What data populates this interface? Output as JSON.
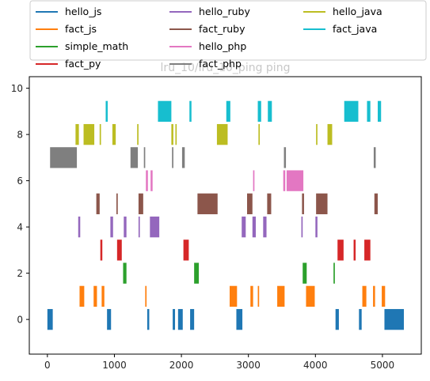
{
  "chart_data": {
    "type": "bar",
    "orientation": "horizontal-broken-bar",
    "title": "lru_10/lru_10_ping ping",
    "xlabel": "",
    "ylabel": "",
    "xlim": [
      -270,
      5580
    ],
    "ylim": [
      -1.5,
      10.5
    ],
    "xticks": [
      0,
      1000,
      2000,
      3000,
      4000,
      5000
    ],
    "yticks": [
      0,
      2,
      4,
      6,
      8,
      10
    ],
    "grid": false,
    "legend": {
      "placement": "upper-center-outside",
      "columns": 3
    },
    "bar_height": 0.9,
    "series": [
      {
        "name": "hello_js",
        "color": "#1f77b4",
        "y": 0,
        "segments": [
          [
            0,
            80
          ],
          [
            890,
            60
          ],
          [
            1490,
            30
          ],
          [
            1870,
            35
          ],
          [
            1950,
            70
          ],
          [
            2130,
            60
          ],
          [
            2820,
            90
          ],
          [
            4300,
            50
          ],
          [
            4650,
            40
          ],
          [
            5030,
            290
          ]
        ]
      },
      {
        "name": "fact_js",
        "color": "#ff7f0e",
        "y": 1,
        "segments": [
          [
            480,
            70
          ],
          [
            690,
            50
          ],
          [
            810,
            40
          ],
          [
            1460,
            20
          ],
          [
            2720,
            110
          ],
          [
            3030,
            40
          ],
          [
            3140,
            20
          ],
          [
            3430,
            110
          ],
          [
            3860,
            130
          ],
          [
            4700,
            60
          ],
          [
            4860,
            30
          ],
          [
            4990,
            50
          ]
        ]
      },
      {
        "name": "simple_math",
        "color": "#2ca02c",
        "y": 2,
        "segments": [
          [
            1130,
            50
          ],
          [
            2190,
            70
          ],
          [
            3810,
            60
          ],
          [
            4270,
            20
          ]
        ]
      },
      {
        "name": "fact_py",
        "color": "#d62728",
        "y": 3,
        "segments": [
          [
            790,
            30
          ],
          [
            1040,
            70
          ],
          [
            2030,
            80
          ],
          [
            4330,
            90
          ],
          [
            4570,
            30
          ],
          [
            4730,
            90
          ]
        ]
      },
      {
        "name": "hello_ruby",
        "color": "#9467bd",
        "y": 4,
        "segments": [
          [
            460,
            30
          ],
          [
            940,
            40
          ],
          [
            1140,
            40
          ],
          [
            1360,
            20
          ],
          [
            1530,
            140
          ],
          [
            2900,
            60
          ],
          [
            3060,
            50
          ],
          [
            3220,
            50
          ],
          [
            3790,
            20
          ],
          [
            4000,
            30
          ]
        ]
      },
      {
        "name": "fact_ruby",
        "color": "#8c564b",
        "y": 5,
        "segments": [
          [
            730,
            50
          ],
          [
            1030,
            20
          ],
          [
            1360,
            70
          ],
          [
            2240,
            300
          ],
          [
            2980,
            80
          ],
          [
            3280,
            60
          ],
          [
            3800,
            30
          ],
          [
            4010,
            170
          ],
          [
            4880,
            50
          ]
        ]
      },
      {
        "name": "hello_php",
        "color": "#e377c2",
        "y": 6,
        "segments": [
          [
            1470,
            30
          ],
          [
            1540,
            30
          ],
          [
            3070,
            20
          ],
          [
            3520,
            30
          ],
          [
            3570,
            250
          ]
        ]
      },
      {
        "name": "fact_php",
        "color": "#7f7f7f",
        "y": 7,
        "segments": [
          [
            40,
            400
          ],
          [
            1240,
            110
          ],
          [
            1440,
            20
          ],
          [
            1860,
            20
          ],
          [
            2010,
            40
          ],
          [
            3530,
            30
          ],
          [
            4870,
            30
          ]
        ]
      },
      {
        "name": "hello_java",
        "color": "#bcbd22",
        "y": 8,
        "segments": [
          [
            420,
            50
          ],
          [
            540,
            160
          ],
          [
            780,
            20
          ],
          [
            970,
            50
          ],
          [
            1340,
            20
          ],
          [
            1850,
            30
          ],
          [
            1910,
            20
          ],
          [
            2530,
            160
          ],
          [
            3150,
            20
          ],
          [
            4010,
            20
          ],
          [
            4180,
            70
          ]
        ]
      },
      {
        "name": "fact_java",
        "color": "#17becf",
        "y": 9,
        "segments": [
          [
            870,
            30
          ],
          [
            1650,
            200
          ],
          [
            2120,
            30
          ],
          [
            2670,
            60
          ],
          [
            3140,
            50
          ],
          [
            3290,
            60
          ],
          [
            4430,
            210
          ],
          [
            4770,
            50
          ],
          [
            4930,
            50
          ]
        ]
      }
    ]
  }
}
